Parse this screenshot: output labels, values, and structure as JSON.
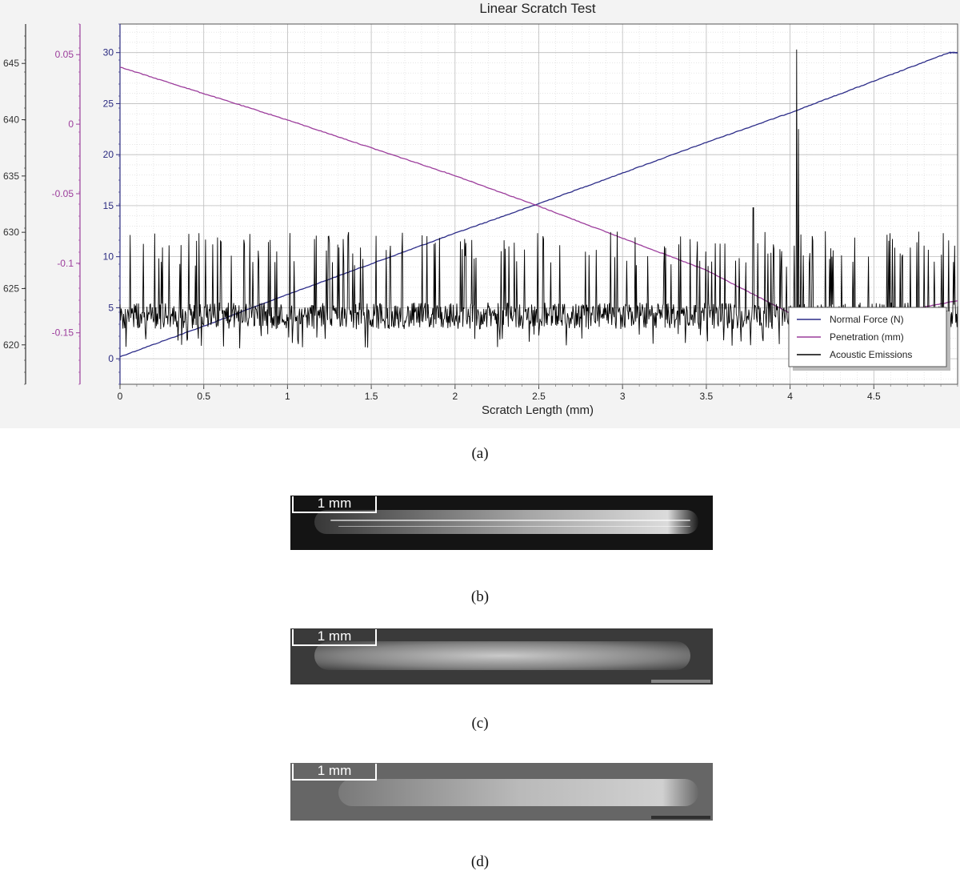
{
  "chart_data": {
    "type": "line",
    "title": "Linear Scratch Test",
    "xlabel": "Scratch Length (mm)",
    "xlim": [
      0,
      5
    ],
    "x_ticks": [
      "0",
      "0.5",
      "1",
      "1.5",
      "2",
      "2.5",
      "3",
      "3.5",
      "4",
      "4.5"
    ],
    "axes": [
      {
        "id": "acoustic",
        "ylim": [
          616.5,
          648.5
        ],
        "ticks": [
          "620",
          "625",
          "630",
          "635",
          "640",
          "645"
        ],
        "color": "#333333"
      },
      {
        "id": "penetration",
        "ylim": [
          -0.187,
          0.072
        ],
        "ticks": [
          "-0.15",
          "-0.1",
          "-0.05",
          "0",
          "0.05"
        ],
        "color": "#9c3d9c"
      },
      {
        "id": "force",
        "ylim": [
          -2.5,
          32.8
        ],
        "ticks": [
          "0",
          "5",
          "10",
          "15",
          "20",
          "25",
          "30"
        ],
        "color": "#2a2a80"
      }
    ],
    "grid": true,
    "legend_position": "bottom-right",
    "series": [
      {
        "name": "Normal Force (N)",
        "axis": "force",
        "color": "#2c2c88",
        "x": [
          0,
          0.5,
          1,
          1.5,
          2,
          2.5,
          3,
          3.5,
          4,
          4.5,
          4.95,
          5.0
        ],
        "y": [
          0.2,
          3.2,
          6.3,
          9.3,
          12.3,
          15.2,
          18.2,
          21.2,
          24.1,
          27.2,
          30.0,
          30.0
        ]
      },
      {
        "name": "Penetration (mm)",
        "axis": "penetration",
        "color": "#9c3d9c",
        "x": [
          0,
          0.5,
          1,
          1.5,
          2,
          2.5,
          3,
          3.5,
          4,
          4.5,
          5.0
        ],
        "y": [
          0.041,
          0.022,
          0.003,
          -0.017,
          -0.037,
          -0.059,
          -0.082,
          -0.105,
          -0.136,
          -0.138,
          -0.127
        ]
      },
      {
        "name": "Acoustic Emissions",
        "axis": "force",
        "color": "#000000",
        "baseline": 4.2,
        "noise": 1.3,
        "spike_max": 12.5,
        "peaks": [
          {
            "x": 4.04,
            "y": 30.3
          },
          {
            "x": 4.05,
            "y": 22.5
          },
          {
            "x": 3.78,
            "y": 14.8
          }
        ]
      }
    ]
  },
  "panels": [
    {
      "caption": "(a)"
    },
    {
      "caption": "(b)",
      "scale_label": "1 mm"
    },
    {
      "caption": "(c)",
      "scale_label": "1 mm"
    },
    {
      "caption": "(d)",
      "scale_label": "1 mm"
    }
  ]
}
